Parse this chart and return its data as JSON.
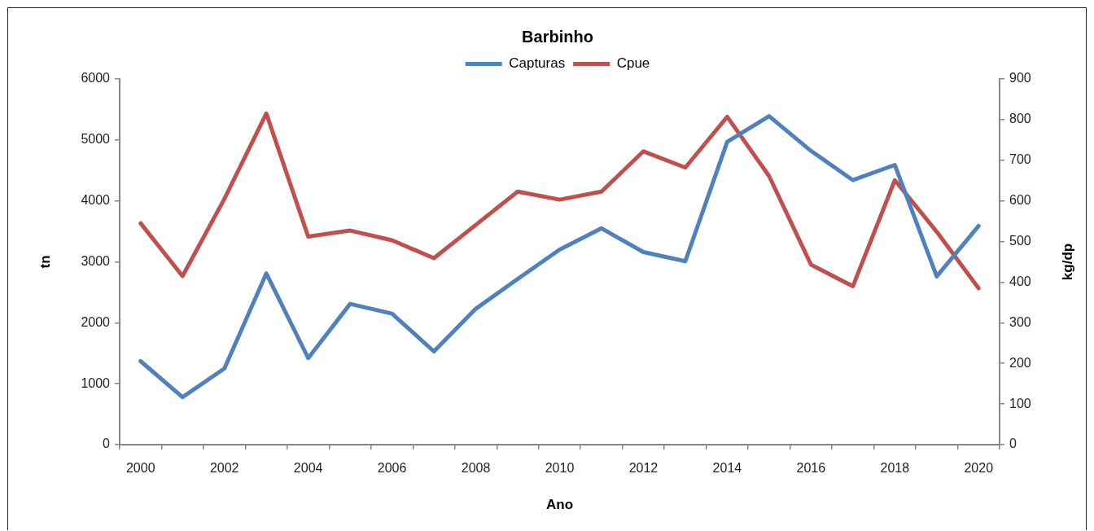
{
  "chart_data": {
    "type": "line",
    "title": "Barbinho",
    "xlabel": "Ano",
    "ylabel": "tn",
    "y2label": "kg/dp",
    "categories": [
      "2000",
      null,
      "2002",
      null,
      "2004",
      null,
      "2006",
      null,
      "2008",
      null,
      "2010",
      null,
      "2012",
      null,
      "2014",
      null,
      "2016",
      null,
      "2018",
      null,
      "2020"
    ],
    "series": [
      {
        "name": "Capturas",
        "color": "#4f81bd",
        "values": [
          1370,
          780,
          1250,
          2810,
          1420,
          2310,
          2150,
          1530,
          2230,
          2720,
          3200,
          3550,
          3160,
          3010,
          4970,
          5390,
          4820,
          4340,
          4590,
          2760,
          3590
        ]
      },
      {
        "name": "Cpue",
        "color": "#c0504d",
        "axis": "y2",
        "values": [
          545,
          415,
          605,
          815,
          512,
          527,
          503,
          459,
          541,
          623,
          603,
          623,
          722,
          682,
          807,
          661,
          443,
          390,
          651,
          524,
          385
        ]
      }
    ],
    "ylim": [
      0,
      6000
    ],
    "yticks": [
      0,
      1000,
      2000,
      3000,
      4000,
      5000,
      6000
    ],
    "y2lim": [
      0,
      900
    ],
    "y2ticks": [
      0,
      100,
      200,
      300,
      400,
      500,
      600,
      700,
      800,
      900
    ],
    "legend": "top",
    "marker": "none"
  }
}
